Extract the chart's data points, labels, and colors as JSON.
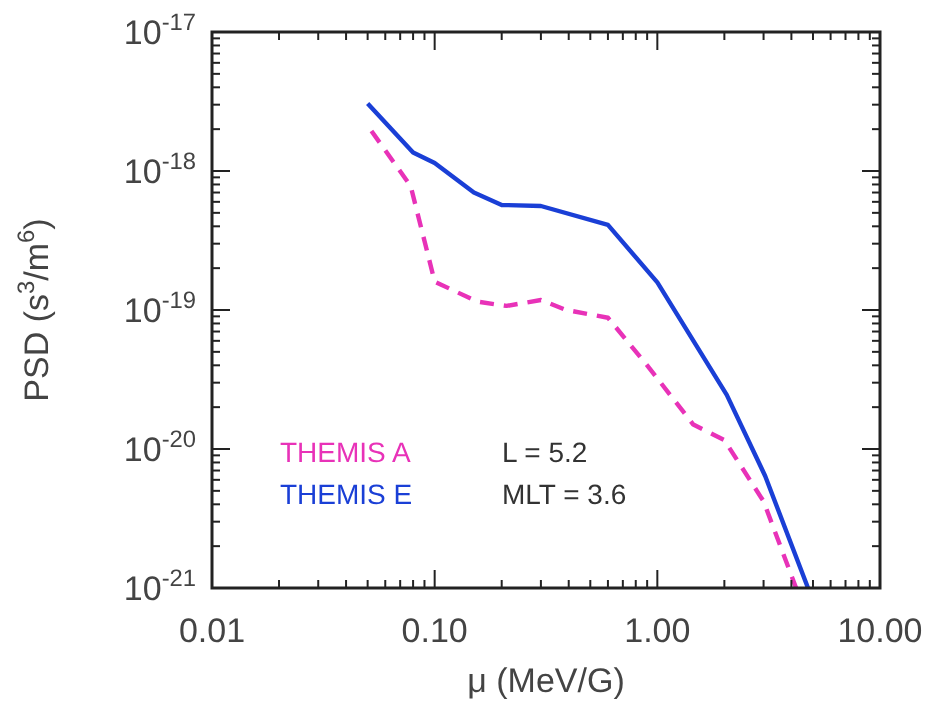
{
  "chart_data": {
    "type": "line",
    "xlabel": "μ (MeV/G)",
    "ylabel": "PSD (s$^{3}$/m$^{6}$)",
    "log": "xy",
    "grid": false,
    "legend": "bottom left",
    "xlim": [
      0.01,
      10
    ],
    "ylim": [
      1e-21,
      1e-17
    ],
    "xticks": [
      {
        "value": 0.01,
        "label": "0.01"
      },
      {
        "value": 0.1,
        "label": "0.10"
      },
      {
        "value": 1,
        "label": "1.00"
      },
      {
        "value": 10,
        "label": "10.00"
      }
    ],
    "yticks": [
      {
        "value": 1e-21,
        "label": "10$^{-21}$"
      },
      {
        "value": 1e-20,
        "label": "10$^{-20}$"
      },
      {
        "value": 1e-19,
        "label": "10$^{-19}$"
      },
      {
        "value": 1e-18,
        "label": "10$^{-18}$"
      },
      {
        "value": 1e-17,
        "label": "10$^{-17}$"
      }
    ],
    "annotations": [
      "L = 5.2",
      "MLT = 3.6"
    ],
    "series": [
      {
        "name": "THEMIS A",
        "color": "#e832b8",
        "line_style": "dashed",
        "x": [
          0.052,
          0.078,
          0.093,
          0.1,
          0.155,
          0.21,
          0.3,
          0.39,
          0.6,
          0.9,
          1.45,
          2.0,
          3.0,
          4.2
        ],
        "values": [
          1.94e-18,
          7.8e-19,
          2.55e-19,
          1.6e-19,
          1.15e-19,
          1.07e-19,
          1.18e-19,
          1e-19,
          8.8e-20,
          4e-20,
          1.5e-20,
          1.16e-20,
          4.2e-21,
          1e-21
        ]
      },
      {
        "name": "THEMIS E",
        "color": "#1a3fd6",
        "line_style": "solid",
        "x": [
          0.05,
          0.08,
          0.1,
          0.15,
          0.2,
          0.3,
          0.6,
          1.0,
          2.05,
          3.05,
          4.75
        ],
        "values": [
          3.06e-18,
          1.36e-18,
          1.14e-18,
          7e-19,
          5.7e-19,
          5.6e-19,
          4.1e-19,
          1.58e-19,
          2.45e-20,
          6.4e-21,
          1e-21
        ]
      }
    ]
  }
}
